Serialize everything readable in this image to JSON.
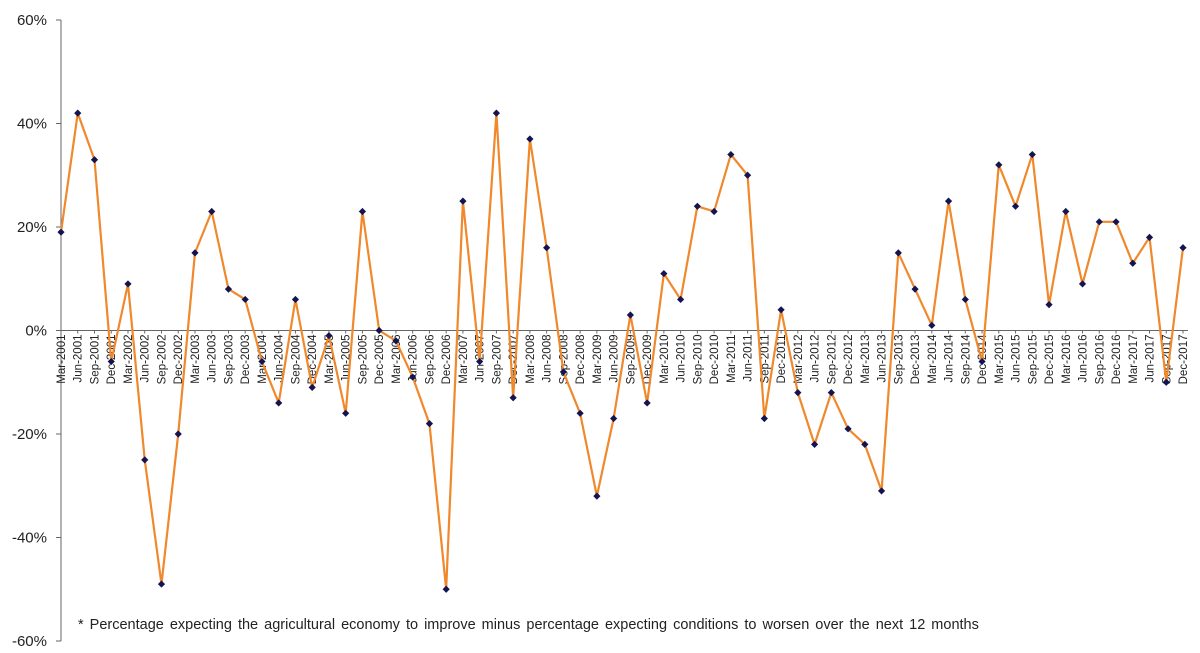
{
  "chart_data": {
    "type": "line",
    "title": "",
    "xlabel": "",
    "ylabel": "",
    "ylim": [
      -60,
      60
    ],
    "yticks": [
      -60,
      -40,
      -20,
      0,
      20,
      40,
      60
    ],
    "ytick_labels": [
      "-60%",
      "-40%",
      "-20%",
      "0%",
      "20%",
      "40%",
      "60%"
    ],
    "grid": false,
    "legend": "none",
    "colors": {
      "line": "#F0882C",
      "marker": "#141450",
      "axis": "#666666"
    },
    "note": "* Percentage expecting the agricultural economy to improve minus percentage expecting conditions to worsen over the next 12 months",
    "x": [
      "Mar-2001",
      "Jun-2001",
      "Sep-2001",
      "Dec-2001",
      "Mar-2002",
      "Jun-2002",
      "Sep-2002",
      "Dec-2002",
      "Mar-2003",
      "Jun-2003",
      "Sep-2003",
      "Dec-2003",
      "Mar-2004",
      "Jun-2004",
      "Sep-2004",
      "Dec-2004",
      "Mar-2005",
      "Jun-2005",
      "Sep-2005",
      "Dec-2005",
      "Mar-2006",
      "Jun-2006",
      "Sep-2006",
      "Dec-2006",
      "Mar-2007",
      "Jun-2007",
      "Sep-2007",
      "Dec-2007",
      "Mar-2008",
      "Jun-2008",
      "Sep-2008",
      "Dec-2008",
      "Mar-2009",
      "Jun-2009",
      "Sep-2009",
      "Dec-2009",
      "Mar-2010",
      "Jun-2010",
      "Sep-2010",
      "Dec-2010",
      "Mar-2011",
      "Jun-2011",
      "Sep-2011",
      "Dec-2011",
      "Mar-2012",
      "Jun-2012",
      "Sep-2012",
      "Dec-2012",
      "Mar-2013",
      "Jun-2013",
      "Sep-2013",
      "Dec-2013",
      "Mar-2014",
      "Jun-2014",
      "Sep-2014",
      "Dec-2014",
      "Mar-2015",
      "Jun-2015",
      "Sep-2015",
      "Dec-2015",
      "Mar-2016",
      "Jun-2016",
      "Sep-2016",
      "Dec-2016",
      "Mar-2017",
      "Jun-2017",
      "Sep-2017",
      "Dec-2017"
    ],
    "series": [
      {
        "values": [
          19,
          42,
          33,
          -6,
          9,
          -25,
          -49,
          -20,
          15,
          23,
          8,
          6,
          -6,
          -14,
          6,
          -11,
          -1,
          -16,
          23,
          0,
          -2,
          -9,
          -18,
          -50,
          25,
          -6,
          42,
          -13,
          37,
          16,
          -8,
          -16,
          -32,
          -17,
          3,
          -14,
          11,
          6,
          24,
          23,
          34,
          30,
          -17,
          4,
          -12,
          -22,
          -12,
          -19,
          -22,
          -31,
          15,
          8,
          1,
          25,
          6,
          -6,
          32,
          24,
          34,
          5,
          23,
          9,
          21,
          21,
          13,
          18,
          -10,
          16
        ]
      }
    ]
  }
}
